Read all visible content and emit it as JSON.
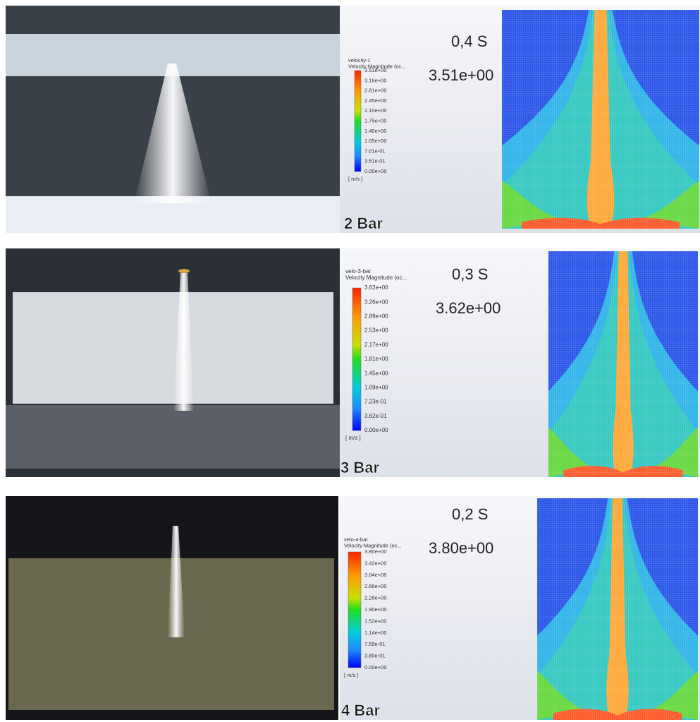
{
  "rows": [
    {
      "pressure": "2 Bar",
      "time": "0,4 S",
      "max": "3.51e+00",
      "legend": {
        "title": [
          "velocity-1",
          "Velocity Magnitude (oc..."
        ],
        "unit": "[ m/s ]",
        "labels": [
          "3.51e+00",
          "3.16e+00",
          "2.81e+00",
          "2.45e+00",
          "2.10e+00",
          "1.75e+00",
          "1.40e+00",
          "1.05e+00",
          "7.01e-01",
          "3.51e-01",
          "0.00e+00"
        ]
      }
    },
    {
      "pressure": "3 Bar",
      "time": "0,3 S",
      "max": "3.62e+00",
      "legend": {
        "title": [
          "velo-3-bar",
          "Velocity Magnitude (oc..."
        ],
        "unit": "[ m/s ]",
        "labels": [
          "3.62e+00",
          "3.26e+00",
          "2.89e+00",
          "2.53e+00",
          "2.17e+00",
          "1.81e+00",
          "1.45e+00",
          "1.09e+00",
          "7.23e-01",
          "3.62e-01",
          "0.00e+00"
        ]
      }
    },
    {
      "pressure": "4 Bar",
      "time": "0,2 S",
      "max": "3.80e+00",
      "legend": {
        "title": [
          "velo-4-bar",
          "Velocity Magnitude (oc..."
        ],
        "unit": "[ m/s ]",
        "labels": [
          "3.80e+00",
          "3.42e+00",
          "3.04e+00",
          "2.66e+00",
          "2.28e+00",
          "1.90e+00",
          "1.52e+00",
          "1.14e+00",
          "7.59e-01",
          "3.80e-01",
          "0.00e+00"
        ]
      }
    }
  ]
}
